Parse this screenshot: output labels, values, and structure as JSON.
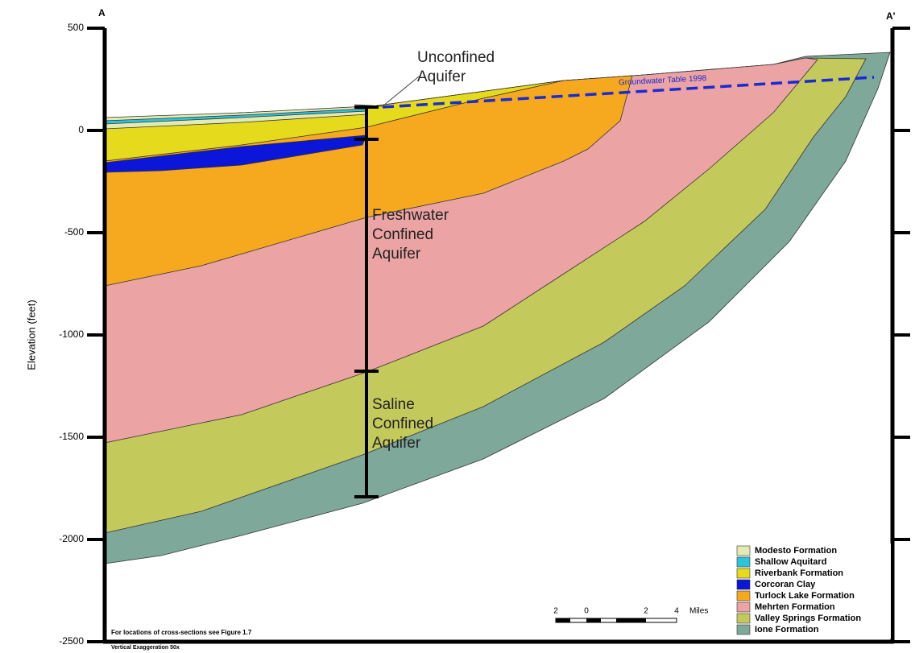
{
  "section": {
    "start": "A",
    "end": "A'"
  },
  "axis": {
    "label": "Elevation (feet)",
    "ylim": [
      -2500,
      500
    ],
    "yticks": [
      500,
      0,
      -500,
      -1000,
      -1500,
      -2000,
      -2500
    ]
  },
  "water_table": "Groundwater Table 1998",
  "annotations": [
    [
      "Unconfined",
      "Aquifer"
    ],
    [
      "Freshwater",
      "Confined",
      "Aquifer"
    ],
    [
      "Saline",
      "Confined",
      "Aquifer"
    ]
  ],
  "legend": [
    {
      "label": "Modesto Formation",
      "color": "#e3ebb3"
    },
    {
      "label": "Shallow Aquitard",
      "color": "#2cc5d8"
    },
    {
      "label": "Riverbank Formation",
      "color": "#e6da1c"
    },
    {
      "label": "Corcoran Clay",
      "color": "#0b16d8"
    },
    {
      "label": "Turlock Lake Formation",
      "color": "#f6a91f"
    },
    {
      "label": "Mehrten Formation",
      "color": "#eca3a3"
    },
    {
      "label": "Valley Springs Formation",
      "color": "#c4c95c"
    },
    {
      "label": "Ione Formation",
      "color": "#7ea89a"
    }
  ],
  "scale": {
    "ticks": [
      "2",
      "0",
      "2",
      "4"
    ],
    "unit": "Miles"
  },
  "notes": [
    "For locations of cross-sections see Figure 1.7",
    "Vertical Exaggeration 50x"
  ]
}
